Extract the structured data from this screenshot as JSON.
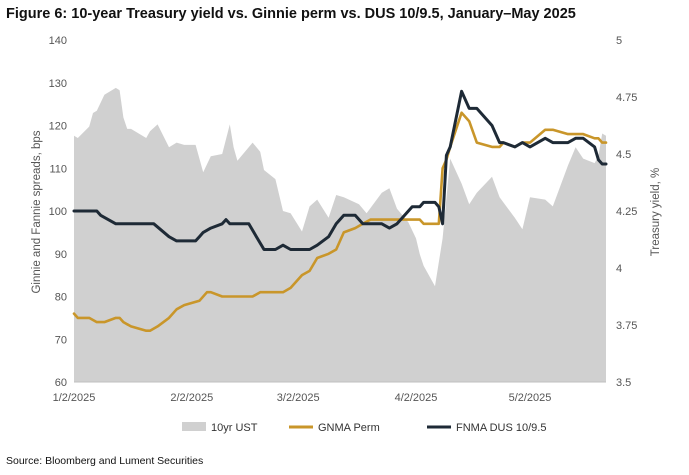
{
  "figure": {
    "title": "Figure 6: 10-year Treasury yield vs. Ginnie perm vs. DUS 10/9.5, January–May 2025",
    "source": "Source: Bloomberg and Lument Securities"
  },
  "chart_data": {
    "type": "line",
    "title": "Figure 6: 10-year Treasury yield vs. Ginnie perm vs. DUS 10/9.5, January–May 2025",
    "xlabel": "",
    "ylabel": "Ginnie and Fannie spreads, bps",
    "y2label": "Treasury yield, %",
    "xlim": [
      "2025-01-02",
      "2025-05-22"
    ],
    "ylim": [
      60,
      140
    ],
    "y2lim": [
      3.5,
      5
    ],
    "x_ticks": [
      "1/2/2025",
      "2/2/2025",
      "3/2/2025",
      "4/2/2025",
      "5/2/2025"
    ],
    "y_ticks": [
      60,
      70,
      80,
      90,
      100,
      110,
      120,
      130,
      140
    ],
    "y2_ticks": [
      3.5,
      3.75,
      4,
      4.25,
      4.5,
      4.75,
      5
    ],
    "legend_position": "bottom",
    "grid": false,
    "series": [
      {
        "name": "10yr UST",
        "axis": "right",
        "style": "area",
        "color": "#d0d0d0",
        "x": [
          "2025-01-02",
          "2025-01-03",
          "2025-01-06",
          "2025-01-07",
          "2025-01-08",
          "2025-01-10",
          "2025-01-13",
          "2025-01-14",
          "2025-01-15",
          "2025-01-16",
          "2025-01-17",
          "2025-01-21",
          "2025-01-22",
          "2025-01-24",
          "2025-01-27",
          "2025-01-29",
          "2025-01-31",
          "2025-02-03",
          "2025-02-05",
          "2025-02-07",
          "2025-02-10",
          "2025-02-12",
          "2025-02-13",
          "2025-02-14",
          "2025-02-18",
          "2025-02-20",
          "2025-02-21",
          "2025-02-24",
          "2025-02-26",
          "2025-02-28",
          "2025-03-03",
          "2025-03-05",
          "2025-03-07",
          "2025-03-10",
          "2025-03-12",
          "2025-03-14",
          "2025-03-18",
          "2025-03-20",
          "2025-03-24",
          "2025-03-26",
          "2025-03-28",
          "2025-03-31",
          "2025-04-02",
          "2025-04-03",
          "2025-04-04",
          "2025-04-07",
          "2025-04-09",
          "2025-04-11",
          "2025-04-14",
          "2025-04-16",
          "2025-04-18",
          "2025-04-22",
          "2025-04-24",
          "2025-04-28",
          "2025-04-30",
          "2025-05-02",
          "2025-05-06",
          "2025-05-08",
          "2025-05-12",
          "2025-05-14",
          "2025-05-16",
          "2025-05-19",
          "2025-05-20",
          "2025-05-21",
          "2025-05-22"
        ],
        "values": [
          4.58,
          4.57,
          4.62,
          4.68,
          4.69,
          4.76,
          4.79,
          4.78,
          4.66,
          4.61,
          4.61,
          4.57,
          4.6,
          4.63,
          4.53,
          4.55,
          4.54,
          4.54,
          4.42,
          4.49,
          4.5,
          4.63,
          4.53,
          4.47,
          4.55,
          4.51,
          4.43,
          4.39,
          4.25,
          4.24,
          4.16,
          4.27,
          4.3,
          4.22,
          4.32,
          4.31,
          4.28,
          4.24,
          4.33,
          4.35,
          4.26,
          4.2,
          4.13,
          4.06,
          4.01,
          3.92,
          4.13,
          4.48,
          4.37,
          4.28,
          4.33,
          4.4,
          4.31,
          4.22,
          4.17,
          4.31,
          4.3,
          4.27,
          4.45,
          4.53,
          4.48,
          4.46,
          4.49,
          4.59,
          4.58
        ]
      },
      {
        "name": "GNMA Perm",
        "axis": "left",
        "style": "line",
        "color": "#c9962a",
        "x": [
          "2025-01-02",
          "2025-01-03",
          "2025-01-06",
          "2025-01-08",
          "2025-01-10",
          "2025-01-13",
          "2025-01-14",
          "2025-01-15",
          "2025-01-17",
          "2025-01-21",
          "2025-01-22",
          "2025-01-24",
          "2025-01-27",
          "2025-01-29",
          "2025-01-31",
          "2025-02-04",
          "2025-02-06",
          "2025-02-07",
          "2025-02-10",
          "2025-02-12",
          "2025-02-14",
          "2025-02-18",
          "2025-02-20",
          "2025-02-24",
          "2025-02-26",
          "2025-02-28",
          "2025-03-03",
          "2025-03-05",
          "2025-03-07",
          "2025-03-10",
          "2025-03-12",
          "2025-03-14",
          "2025-03-17",
          "2025-03-19",
          "2025-03-21",
          "2025-03-24",
          "2025-03-26",
          "2025-03-28",
          "2025-03-31",
          "2025-04-02",
          "2025-04-03",
          "2025-04-04",
          "2025-04-07",
          "2025-04-08",
          "2025-04-09",
          "2025-04-10",
          "2025-04-11",
          "2025-04-14",
          "2025-04-16",
          "2025-04-18",
          "2025-04-22",
          "2025-04-24",
          "2025-04-25",
          "2025-04-28",
          "2025-04-30",
          "2025-05-02",
          "2025-05-06",
          "2025-05-08",
          "2025-05-12",
          "2025-05-14",
          "2025-05-16",
          "2025-05-19",
          "2025-05-20",
          "2025-05-21",
          "2025-05-22"
        ],
        "values": [
          76,
          75,
          75,
          74,
          74,
          75,
          75,
          74,
          73,
          72,
          72,
          73,
          75,
          77,
          78,
          79,
          81,
          81,
          80,
          80,
          80,
          80,
          81,
          81,
          81,
          82,
          85,
          86,
          89,
          90,
          91,
          95,
          96,
          97,
          98,
          98,
          98,
          98,
          98,
          98,
          98,
          97,
          97,
          97,
          110,
          112,
          115,
          123,
          121,
          116,
          115,
          115,
          116,
          115,
          116,
          116,
          119,
          119,
          118,
          118,
          118,
          117,
          117,
          116,
          116
        ]
      },
      {
        "name": "FNMA DUS 10/9.5",
        "axis": "left",
        "style": "line",
        "color": "#1e2a36",
        "x": [
          "2025-01-02",
          "2025-01-06",
          "2025-01-08",
          "2025-01-09",
          "2025-01-13",
          "2025-01-15",
          "2025-01-16",
          "2025-01-21",
          "2025-01-23",
          "2025-01-27",
          "2025-01-29",
          "2025-01-31",
          "2025-02-03",
          "2025-02-04",
          "2025-02-05",
          "2025-02-07",
          "2025-02-10",
          "2025-02-11",
          "2025-02-12",
          "2025-02-14",
          "2025-02-17",
          "2025-02-19",
          "2025-02-21",
          "2025-02-24",
          "2025-02-26",
          "2025-02-28",
          "2025-03-03",
          "2025-03-05",
          "2025-03-07",
          "2025-03-10",
          "2025-03-12",
          "2025-03-14",
          "2025-03-17",
          "2025-03-19",
          "2025-03-21",
          "2025-03-24",
          "2025-03-26",
          "2025-03-28",
          "2025-03-31",
          "2025-04-01",
          "2025-04-02",
          "2025-04-03",
          "2025-04-04",
          "2025-04-07",
          "2025-04-08",
          "2025-04-09",
          "2025-04-10",
          "2025-04-11",
          "2025-04-14",
          "2025-04-16",
          "2025-04-18",
          "2025-04-22",
          "2025-04-24",
          "2025-04-25",
          "2025-04-28",
          "2025-04-30",
          "2025-05-02",
          "2025-05-06",
          "2025-05-08",
          "2025-05-12",
          "2025-05-14",
          "2025-05-16",
          "2025-05-19",
          "2025-05-20",
          "2025-05-21",
          "2025-05-22"
        ],
        "values": [
          100,
          100,
          100,
          99,
          97,
          97,
          97,
          97,
          97,
          94,
          93,
          93,
          93,
          94,
          95,
          96,
          97,
          98,
          97,
          97,
          97,
          94,
          91,
          91,
          92,
          91,
          91,
          91,
          92,
          94,
          97,
          99,
          99,
          97,
          97,
          97,
          96,
          97,
          100,
          101,
          101,
          101,
          102,
          102,
          101,
          97,
          113,
          115,
          128,
          124,
          124,
          120,
          116,
          116,
          115,
          116,
          115,
          117,
          116,
          116,
          117,
          117,
          115,
          112,
          111,
          111
        ]
      }
    ]
  }
}
